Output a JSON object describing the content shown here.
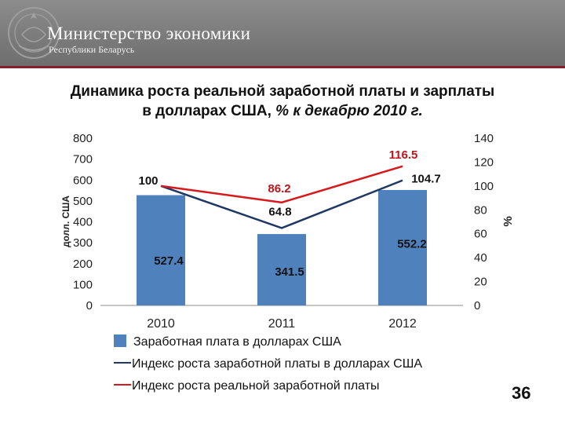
{
  "header": {
    "ministry": "Министерство экономики",
    "republic": "Республики Беларусь"
  },
  "title": {
    "line1": "Динамика роста реальной заработной платы и зарплаты",
    "line2_main": "в долларах США, ",
    "line2_italic": "% к декабрю 2010 г."
  },
  "chart_data": {
    "type": "bar",
    "categories": [
      "2010",
      "2011",
      "2012"
    ],
    "series": [
      {
        "name": "Заработная плата в долларах США",
        "kind": "bar",
        "axis": "left",
        "values": [
          527.4,
          341.5,
          552.2
        ],
        "color": "#4f81bd"
      },
      {
        "name": "Индекс роста заработной платы в долларах США",
        "kind": "line",
        "axis": "right",
        "values": [
          100,
          64.8,
          104.7
        ],
        "color": "#1f3864"
      },
      {
        "name": "Индекс роста реальной заработной платы",
        "kind": "line",
        "axis": "right",
        "values": [
          100,
          86.2,
          116.5
        ],
        "color": "#d7191c"
      }
    ],
    "ylabel": "долл. США",
    "y2label": "%",
    "ylim": [
      0,
      800
    ],
    "y2lim": [
      0,
      140
    ],
    "yticks": [
      "0",
      "100",
      "200",
      "300",
      "400",
      "500",
      "600",
      "700",
      "800"
    ],
    "y2ticks": [
      "0",
      "20",
      "40",
      "60",
      "80",
      "100",
      "120",
      "140"
    ],
    "bar_labels": [
      "527.4",
      "341.5",
      "552.2"
    ],
    "index_labels": [
      "100",
      "64.8",
      "104.7"
    ],
    "real_labels": [
      "86.2",
      "116.5"
    ],
    "legend": "bottom"
  },
  "page_number": "36"
}
